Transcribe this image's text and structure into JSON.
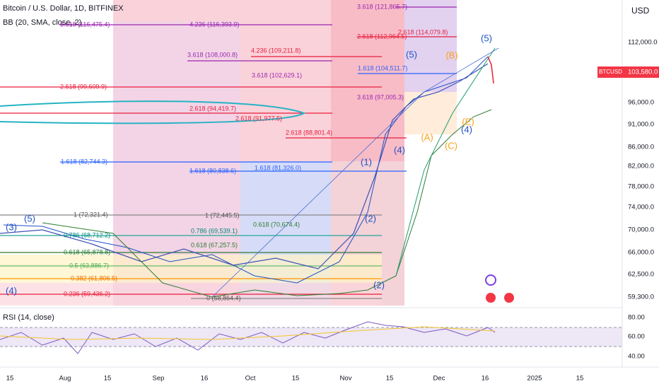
{
  "header": {
    "title": "Bitcoin / U.S. Dollar, 1D, BITFINEX",
    "indicator": "BB (20, SMA, close, 2)",
    "rsi": "RSI (14, close)",
    "currency": "USD"
  },
  "ticker": {
    "symbol": "BTCUSD",
    "price": "103,580.0"
  },
  "price_axis": [
    "112,000.0",
    "96,000.0",
    "91,000.0",
    "86,000.0",
    "82,000.0",
    "78,000.0",
    "74,000.0",
    "70,000.0",
    "66,000.0",
    "62,500.0",
    "59,300.0"
  ],
  "rsi_axis": [
    "80.00",
    "60.00",
    "40.00"
  ],
  "time_axis": [
    "15",
    "Aug",
    "15",
    "Sep",
    "16",
    "Oct",
    "15",
    "Nov",
    "15",
    "Dec",
    "16",
    "2025",
    "15"
  ],
  "fib_labels": [
    {
      "text": "3.618 (121,865.7)",
      "color": "#9c27b0"
    },
    {
      "text": "4.236 (116,393.9)",
      "color": "#9c27b0"
    },
    {
      "text": "3.618 (116,475.4)",
      "color": "#9c27b0"
    },
    {
      "text": "2.618 (112,964.5)",
      "color": "#e91e3c"
    },
    {
      "text": "2.618 (114,079.8)",
      "color": "#e91e3c"
    },
    {
      "text": "4.236 (109,211.8)",
      "color": "#e91e3c"
    },
    {
      "text": "3.618 (108,000.8)",
      "color": "#9c27b0"
    },
    {
      "text": "1.618 (104,511.7)",
      "color": "#2962ff"
    },
    {
      "text": "3.618 (102,629.1)",
      "color": "#9c27b0"
    },
    {
      "text": "2.618 (99,609.9)",
      "color": "#e91e3c"
    },
    {
      "text": "3.618 (97,005.3)",
      "color": "#9c27b0"
    },
    {
      "text": "2.618 (94,419.7)",
      "color": "#e91e3c"
    },
    {
      "text": "2.618 (91,977.5)",
      "color": "#e91e3c"
    },
    {
      "text": "2.618 (88,801.4)",
      "color": "#e91e3c"
    },
    {
      "text": "1.618 (82,744.3)",
      "color": "#2962ff"
    },
    {
      "text": "1.618 (80,838.6)",
      "color": "#2962ff"
    },
    {
      "text": "1.618 (81,326.0)",
      "color": "#2962ff"
    },
    {
      "text": "1 (72,321.4)",
      "color": "#555"
    },
    {
      "text": "1 (72,445.5)",
      "color": "#555"
    },
    {
      "text": "0.786 (68,712.2)",
      "color": "#00897b"
    },
    {
      "text": "0.786 (69,539.1)",
      "color": "#00897b"
    },
    {
      "text": "0.618 (70,674.4)",
      "color": "#2e7d32"
    },
    {
      "text": "0.618 (65,878.8)",
      "color": "#2e7d32"
    },
    {
      "text": "0.618 (67,257.5)",
      "color": "#2e7d32"
    },
    {
      "text": "0.5 (63,886.7)",
      "color": "#4caf50"
    },
    {
      "text": "0.382 (61,806.5)",
      "color": "#ef6c00"
    },
    {
      "text": "0.236 (59,436.2)",
      "color": "#e91e3c"
    },
    {
      "text": "0 (58,864.4)",
      "color": "#555"
    }
  ],
  "wave_labels": [
    {
      "text": "(5)",
      "color": "#1e50c8"
    },
    {
      "text": "(3)",
      "color": "#1e50c8"
    },
    {
      "text": "(4)",
      "color": "#1e50c8"
    },
    {
      "text": "(1)",
      "color": "#1e50c8"
    },
    {
      "text": "(2)",
      "color": "#1e50c8"
    },
    {
      "text": "(2)",
      "color": "#1e50c8"
    },
    {
      "text": "(4)",
      "color": "#1e50c8"
    },
    {
      "text": "(5)",
      "color": "#1e50c8"
    },
    {
      "text": "(A)",
      "color": "#f7a21b"
    },
    {
      "text": "(B)",
      "color": "#f7a21b"
    },
    {
      "text": "(C)",
      "color": "#f7a21b"
    },
    {
      "text": "(E)",
      "color": "#f7a21b"
    },
    {
      "text": "(4)",
      "color": "#1e50c8"
    },
    {
      "text": "(5)",
      "color": "#1e50c8"
    }
  ]
}
